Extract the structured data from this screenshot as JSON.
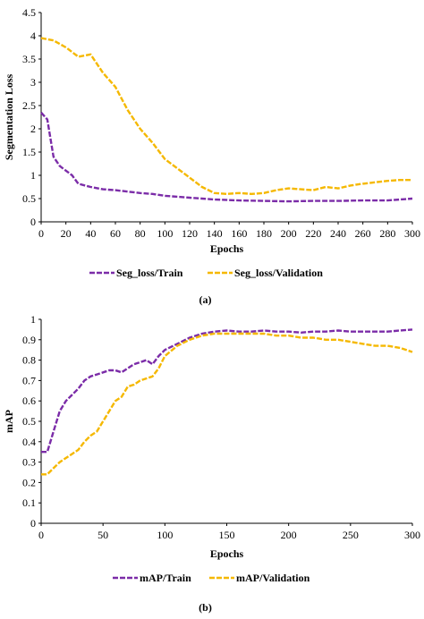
{
  "colors": {
    "train": "#7B2CA8",
    "validation": "#F5B800",
    "axis": "#000000"
  },
  "chart_data": [
    {
      "type": "line",
      "caption": "(a)",
      "xlabel": "Epochs",
      "ylabel": "Segmentation Loss",
      "xlim": [
        0,
        300
      ],
      "ylim": [
        0,
        4.5
      ],
      "xticks": [
        0,
        20,
        40,
        60,
        80,
        100,
        120,
        140,
        160,
        180,
        200,
        220,
        240,
        260,
        280,
        300
      ],
      "yticks": [
        0,
        0.5,
        1,
        1.5,
        2,
        2.5,
        3,
        3.5,
        4,
        4.5
      ],
      "ytick_labels": [
        "0",
        "0.5",
        "1",
        "1.5",
        "2",
        "2.5",
        "3",
        "3.5",
        "4",
        "4.5"
      ],
      "grid": false,
      "legend_position": "bottom",
      "series": [
        {
          "name": "Seg_loss/Train",
          "color_key": "train",
          "x": [
            0,
            5,
            10,
            15,
            20,
            25,
            30,
            40,
            50,
            60,
            70,
            80,
            90,
            100,
            120,
            140,
            160,
            180,
            200,
            220,
            240,
            260,
            280,
            300
          ],
          "y": [
            2.35,
            2.2,
            1.4,
            1.2,
            1.1,
            1.0,
            0.82,
            0.75,
            0.7,
            0.68,
            0.65,
            0.62,
            0.6,
            0.56,
            0.52,
            0.48,
            0.46,
            0.45,
            0.44,
            0.45,
            0.45,
            0.46,
            0.46,
            0.5
          ]
        },
        {
          "name": "Seg_loss/Validation",
          "color_key": "validation",
          "x": [
            0,
            10,
            20,
            30,
            40,
            50,
            60,
            70,
            80,
            90,
            100,
            110,
            120,
            130,
            140,
            150,
            160,
            170,
            180,
            190,
            200,
            210,
            220,
            230,
            240,
            250,
            260,
            270,
            280,
            290,
            300
          ],
          "y": [
            3.95,
            3.9,
            3.75,
            3.55,
            3.6,
            3.2,
            2.9,
            2.4,
            2.0,
            1.7,
            1.35,
            1.15,
            0.95,
            0.75,
            0.62,
            0.6,
            0.62,
            0.6,
            0.62,
            0.68,
            0.72,
            0.7,
            0.68,
            0.75,
            0.72,
            0.78,
            0.82,
            0.85,
            0.88,
            0.9,
            0.9
          ]
        }
      ]
    },
    {
      "type": "line",
      "caption": "(b)",
      "xlabel": "Epochs",
      "ylabel": "mAP",
      "xlim": [
        0,
        300
      ],
      "ylim": [
        0,
        1
      ],
      "xticks": [
        0,
        50,
        100,
        150,
        200,
        250,
        300
      ],
      "yticks": [
        0,
        0.1,
        0.2,
        0.3,
        0.4,
        0.5,
        0.6,
        0.7,
        0.8,
        0.9,
        1
      ],
      "ytick_labels": [
        "0",
        "0.1",
        "0.2",
        "0.3",
        "0.4",
        "0.5",
        "0.6",
        "0.7",
        "0.8",
        "0.9",
        "1"
      ],
      "grid": false,
      "legend_position": "bottom",
      "series": [
        {
          "name": "mAP/Train",
          "color_key": "train",
          "x": [
            0,
            5,
            10,
            15,
            20,
            25,
            30,
            35,
            40,
            45,
            50,
            55,
            60,
            65,
            70,
            75,
            80,
            85,
            90,
            95,
            100,
            110,
            120,
            130,
            140,
            150,
            160,
            170,
            180,
            190,
            200,
            210,
            220,
            230,
            240,
            250,
            260,
            270,
            280,
            290,
            300
          ],
          "y": [
            0.35,
            0.35,
            0.45,
            0.55,
            0.6,
            0.63,
            0.66,
            0.7,
            0.72,
            0.73,
            0.74,
            0.75,
            0.75,
            0.74,
            0.76,
            0.78,
            0.79,
            0.8,
            0.78,
            0.82,
            0.85,
            0.88,
            0.91,
            0.93,
            0.94,
            0.945,
            0.94,
            0.94,
            0.945,
            0.94,
            0.94,
            0.935,
            0.94,
            0.94,
            0.945,
            0.94,
            0.94,
            0.94,
            0.94,
            0.945,
            0.95
          ]
        },
        {
          "name": "mAP/Validation",
          "color_key": "validation",
          "x": [
            0,
            5,
            10,
            15,
            20,
            25,
            30,
            35,
            40,
            45,
            50,
            55,
            60,
            65,
            70,
            75,
            80,
            85,
            90,
            95,
            100,
            110,
            120,
            130,
            140,
            150,
            160,
            170,
            180,
            190,
            200,
            210,
            220,
            230,
            240,
            250,
            260,
            270,
            280,
            290,
            300
          ],
          "y": [
            0.24,
            0.24,
            0.27,
            0.3,
            0.32,
            0.34,
            0.36,
            0.4,
            0.43,
            0.45,
            0.5,
            0.55,
            0.6,
            0.62,
            0.67,
            0.68,
            0.7,
            0.71,
            0.72,
            0.76,
            0.82,
            0.87,
            0.9,
            0.92,
            0.93,
            0.93,
            0.93,
            0.93,
            0.93,
            0.92,
            0.92,
            0.91,
            0.91,
            0.9,
            0.9,
            0.89,
            0.88,
            0.87,
            0.87,
            0.86,
            0.84
          ]
        }
      ]
    }
  ]
}
